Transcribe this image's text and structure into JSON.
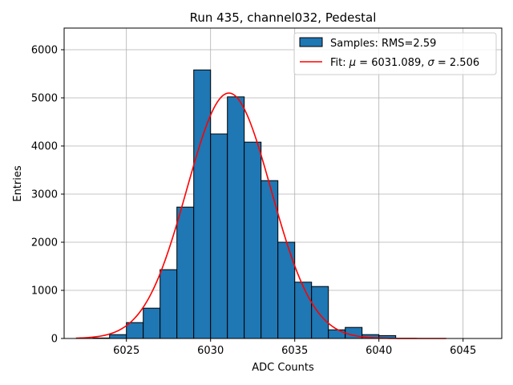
{
  "chart_data": {
    "type": "bar",
    "title": "Run 435, channel032, Pedestal",
    "xlabel": "ADC Counts",
    "ylabel": "Entries",
    "xlim": [
      6021.3,
      6047.3
    ],
    "ylim": [
      0,
      6450
    ],
    "xticks": [
      6025,
      6030,
      6035,
      6040,
      6045
    ],
    "yticks": [
      0,
      1000,
      2000,
      3000,
      4000,
      5000,
      6000
    ],
    "grid": true,
    "legend_position": "top-right",
    "bin_width": 1,
    "bins": [
      {
        "x": 6023,
        "count": 10
      },
      {
        "x": 6024,
        "count": 80
      },
      {
        "x": 6025,
        "count": 330
      },
      {
        "x": 6026,
        "count": 630
      },
      {
        "x": 6027,
        "count": 1430
      },
      {
        "x": 6028,
        "count": 2730
      },
      {
        "x": 6029,
        "count": 5580
      },
      {
        "x": 6030,
        "count": 4250
      },
      {
        "x": 6031,
        "count": 5020
      },
      {
        "x": 6032,
        "count": 4080
      },
      {
        "x": 6033,
        "count": 3280
      },
      {
        "x": 6034,
        "count": 2000
      },
      {
        "x": 6035,
        "count": 1170
      },
      {
        "x": 6036,
        "count": 1080
      },
      {
        "x": 6037,
        "count": 180
      },
      {
        "x": 6038,
        "count": 230
      },
      {
        "x": 6039,
        "count": 80
      },
      {
        "x": 6040,
        "count": 60
      }
    ],
    "fit": {
      "type": "gaussian",
      "mu": 6031.089,
      "sigma": 2.506,
      "amplitude": 5100,
      "x_range": [
        6022,
        6044
      ]
    },
    "series": [
      {
        "name": "Samples: RMS=2.59",
        "kind": "histogram",
        "color": "#1f77b4",
        "edge_color": "#000000"
      },
      {
        "name_prefix": "Fit: ",
        "mu_symbol": "μ",
        "mu_text": " = 6031.089, ",
        "sigma_symbol": "σ",
        "sigma_text": " = 2.506",
        "kind": "line",
        "color": "#ff0000"
      }
    ]
  }
}
